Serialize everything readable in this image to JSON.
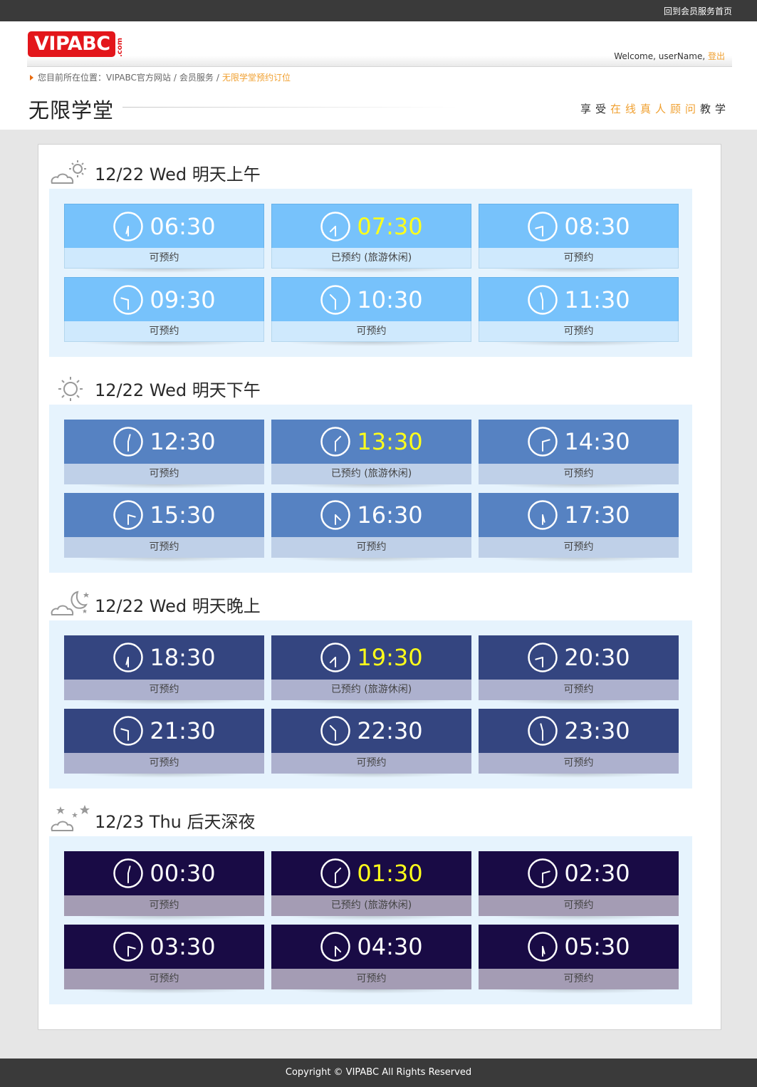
{
  "topbar": {
    "link": "回到会员服务首页"
  },
  "header": {
    "logo_text": "VIPABC",
    "logo_suffix": ".com",
    "welcome_prefix": "Welcome, userName,",
    "logout": "登出"
  },
  "breadcrumb": {
    "prefix": "您目前所在位置：",
    "items": [
      "VIPABC官方网站",
      "会员服务",
      "无限学堂预约订位"
    ]
  },
  "page": {
    "title": "无限学堂",
    "slogan": [
      "享受",
      "在线真人顾问",
      "教学"
    ]
  },
  "sections": [
    {
      "title": "12/22 Wed 明天上午",
      "icon": "sun-cloud-icon",
      "slots": [
        {
          "time": "06:30",
          "status": "可预约",
          "booked": false
        },
        {
          "time": "07:30",
          "status": "已预约 (旅游休闲)",
          "booked": true
        },
        {
          "time": "08:30",
          "status": "可预约",
          "booked": false
        },
        {
          "time": "09:30",
          "status": "可预约",
          "booked": false
        },
        {
          "time": "10:30",
          "status": "可预约",
          "booked": false
        },
        {
          "time": "11:30",
          "status": "可预约",
          "booked": false
        }
      ]
    },
    {
      "title": "12/22 Wed 明天下午",
      "icon": "sun-icon",
      "slots": [
        {
          "time": "12:30",
          "status": "可预约",
          "booked": false
        },
        {
          "time": "13:30",
          "status": "已预约 (旅游休闲)",
          "booked": true
        },
        {
          "time": "14:30",
          "status": "可预约",
          "booked": false
        },
        {
          "time": "15:30",
          "status": "可预约",
          "booked": false
        },
        {
          "time": "16:30",
          "status": "可预约",
          "booked": false
        },
        {
          "time": "17:30",
          "status": "可预约",
          "booked": false
        }
      ]
    },
    {
      "title": "12/22 Wed 明天晚上",
      "icon": "moon-cloud-icon",
      "slots": [
        {
          "time": "18:30",
          "status": "可预约",
          "booked": false
        },
        {
          "time": "19:30",
          "status": "已预约 (旅游休闲)",
          "booked": true
        },
        {
          "time": "20:30",
          "status": "可预约",
          "booked": false
        },
        {
          "time": "21:30",
          "status": "可预约",
          "booked": false
        },
        {
          "time": "22:30",
          "status": "可预约",
          "booked": false
        },
        {
          "time": "23:30",
          "status": "可预约",
          "booked": false
        }
      ]
    },
    {
      "title": "12/23 Thu 后天深夜",
      "icon": "stars-cloud-icon",
      "slots": [
        {
          "time": "00:30",
          "status": "可预约",
          "booked": false
        },
        {
          "time": "01:30",
          "status": "已预约 (旅游休闲)",
          "booked": true
        },
        {
          "time": "02:30",
          "status": "可预约",
          "booked": false
        },
        {
          "time": "03:30",
          "status": "可预约",
          "booked": false
        },
        {
          "time": "04:30",
          "status": "可预约",
          "booked": false
        },
        {
          "time": "05:30",
          "status": "可预约",
          "booked": false
        }
      ]
    }
  ],
  "colors": {
    "morning": "#77c2fb",
    "afternoon": "#5682c2",
    "evening": "#344580",
    "late_night": "#190b45",
    "booked_time": "#ffff1a",
    "accent": "#f0a030"
  },
  "footer": {
    "copyright": "Copyright © VIPABC All Rights Reserved"
  }
}
